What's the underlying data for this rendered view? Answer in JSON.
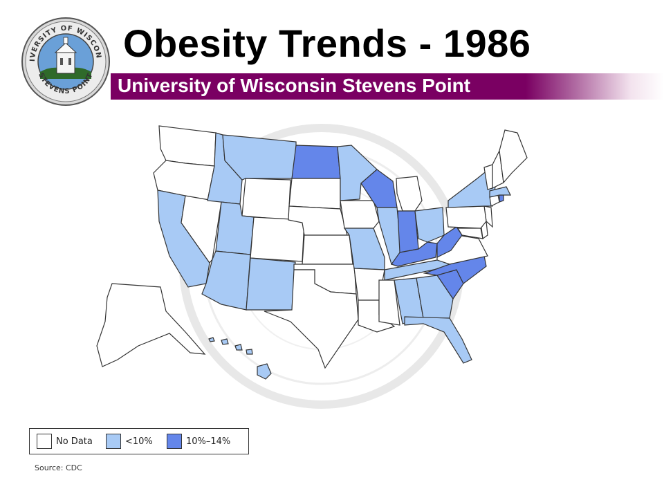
{
  "slide": {
    "title": "Obesity Trends - 1986",
    "subtitle": "University of Wisconsin Stevens Point",
    "source": "Source: CDC"
  },
  "seal": {
    "top_text": "UNIVERSITY OF WISCONSIN",
    "bottom_text": "STEVENS POINT"
  },
  "colors": {
    "no_data": "#ffffff",
    "lt10": "#a8caf5",
    "10to14": "#6486ea",
    "band": "#7a0062",
    "border": "#333333"
  },
  "legend": {
    "items": [
      {
        "key": "no_data",
        "label": "No Data"
      },
      {
        "key": "lt10",
        "label": "<10%"
      },
      {
        "key": "10to14",
        "label": "10%–14%"
      }
    ]
  },
  "map_data": {
    "states": [
      {
        "name": "WA",
        "category": "no_data"
      },
      {
        "name": "OR",
        "category": "no_data"
      },
      {
        "name": "CA",
        "category": "lt10"
      },
      {
        "name": "NV",
        "category": "no_data"
      },
      {
        "name": "ID",
        "category": "lt10"
      },
      {
        "name": "MT",
        "category": "lt10"
      },
      {
        "name": "WY",
        "category": "no_data"
      },
      {
        "name": "UT",
        "category": "lt10"
      },
      {
        "name": "AZ",
        "category": "lt10"
      },
      {
        "name": "CO",
        "category": "no_data"
      },
      {
        "name": "NM",
        "category": "lt10"
      },
      {
        "name": "ND",
        "category": "10to14"
      },
      {
        "name": "SD",
        "category": "no_data"
      },
      {
        "name": "NE",
        "category": "no_data"
      },
      {
        "name": "KS",
        "category": "no_data"
      },
      {
        "name": "OK",
        "category": "no_data"
      },
      {
        "name": "TX",
        "category": "no_data"
      },
      {
        "name": "MN",
        "category": "lt10"
      },
      {
        "name": "IA",
        "category": "no_data"
      },
      {
        "name": "MO",
        "category": "lt10"
      },
      {
        "name": "AR",
        "category": "no_data"
      },
      {
        "name": "LA",
        "category": "no_data"
      },
      {
        "name": "WI",
        "category": "10to14"
      },
      {
        "name": "IL",
        "category": "lt10"
      },
      {
        "name": "MI",
        "category": "no_data"
      },
      {
        "name": "IN",
        "category": "10to14"
      },
      {
        "name": "OH",
        "category": "lt10"
      },
      {
        "name": "KY",
        "category": "10to14"
      },
      {
        "name": "TN",
        "category": "lt10"
      },
      {
        "name": "MS",
        "category": "no_data"
      },
      {
        "name": "AL",
        "category": "lt10"
      },
      {
        "name": "GA",
        "category": "lt10"
      },
      {
        "name": "FL",
        "category": "lt10"
      },
      {
        "name": "SC",
        "category": "10to14"
      },
      {
        "name": "NC",
        "category": "10to14"
      },
      {
        "name": "VA",
        "category": "no_data"
      },
      {
        "name": "WV",
        "category": "10to14"
      },
      {
        "name": "MD",
        "category": "no_data"
      },
      {
        "name": "DE",
        "category": "no_data"
      },
      {
        "name": "NJ",
        "category": "no_data"
      },
      {
        "name": "PA",
        "category": "no_data"
      },
      {
        "name": "NY",
        "category": "lt10"
      },
      {
        "name": "CT",
        "category": "no_data"
      },
      {
        "name": "RI",
        "category": "10to14"
      },
      {
        "name": "MA",
        "category": "lt10"
      },
      {
        "name": "VT",
        "category": "no_data"
      },
      {
        "name": "NH",
        "category": "no_data"
      },
      {
        "name": "ME",
        "category": "no_data"
      },
      {
        "name": "AK",
        "category": "no_data"
      },
      {
        "name": "HI",
        "category": "lt10"
      }
    ]
  }
}
